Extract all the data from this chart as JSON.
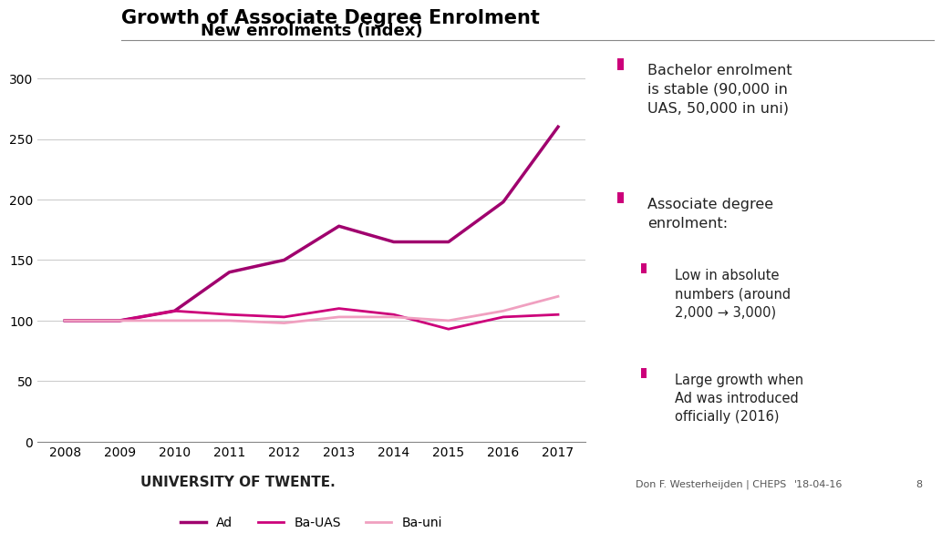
{
  "title": "Growth of Associate Degree Enrolment",
  "chart_title": "New enrolments (index)",
  "years": [
    2008,
    2009,
    2010,
    2011,
    2012,
    2013,
    2014,
    2015,
    2016,
    2017
  ],
  "Ad": [
    100,
    100,
    108,
    140,
    150,
    178,
    165,
    165,
    198,
    260
  ],
  "BaUAS": [
    100,
    100,
    108,
    105,
    103,
    110,
    105,
    93,
    103,
    105
  ],
  "BaUni": [
    100,
    100,
    100,
    100,
    98,
    103,
    103,
    100,
    108,
    120
  ],
  "Ad_color": "#a0006e",
  "BaUAS_color": "#cc007a",
  "BaUni_color": "#f0a0c0",
  "ylim": [
    0,
    325
  ],
  "yticks": [
    0,
    50,
    100,
    150,
    200,
    250,
    300
  ],
  "bg_color": "#ffffff",
  "grid_color": "#cccccc",
  "title_color": "#000000",
  "bullet_color": "#cc007a",
  "bullet1_text": "Bachelor enrolment\nis stable (90,000 in\nUAS, 50,000 in uni)",
  "bullet2_text": "Associate degree\nenrolment:",
  "bullet3_text": "Low in absolute\nnumbers (around\n2,000 → 3,000)",
  "bullet4_text": "Large growth when\nAd was introduced\nofficially (2016)",
  "footer_left": "UNIVERSITY OF TWENTE.",
  "footer_right": "Don F. Westerheijden | CHEPS",
  "footer_date": "'18-04-16",
  "footer_page": "8"
}
